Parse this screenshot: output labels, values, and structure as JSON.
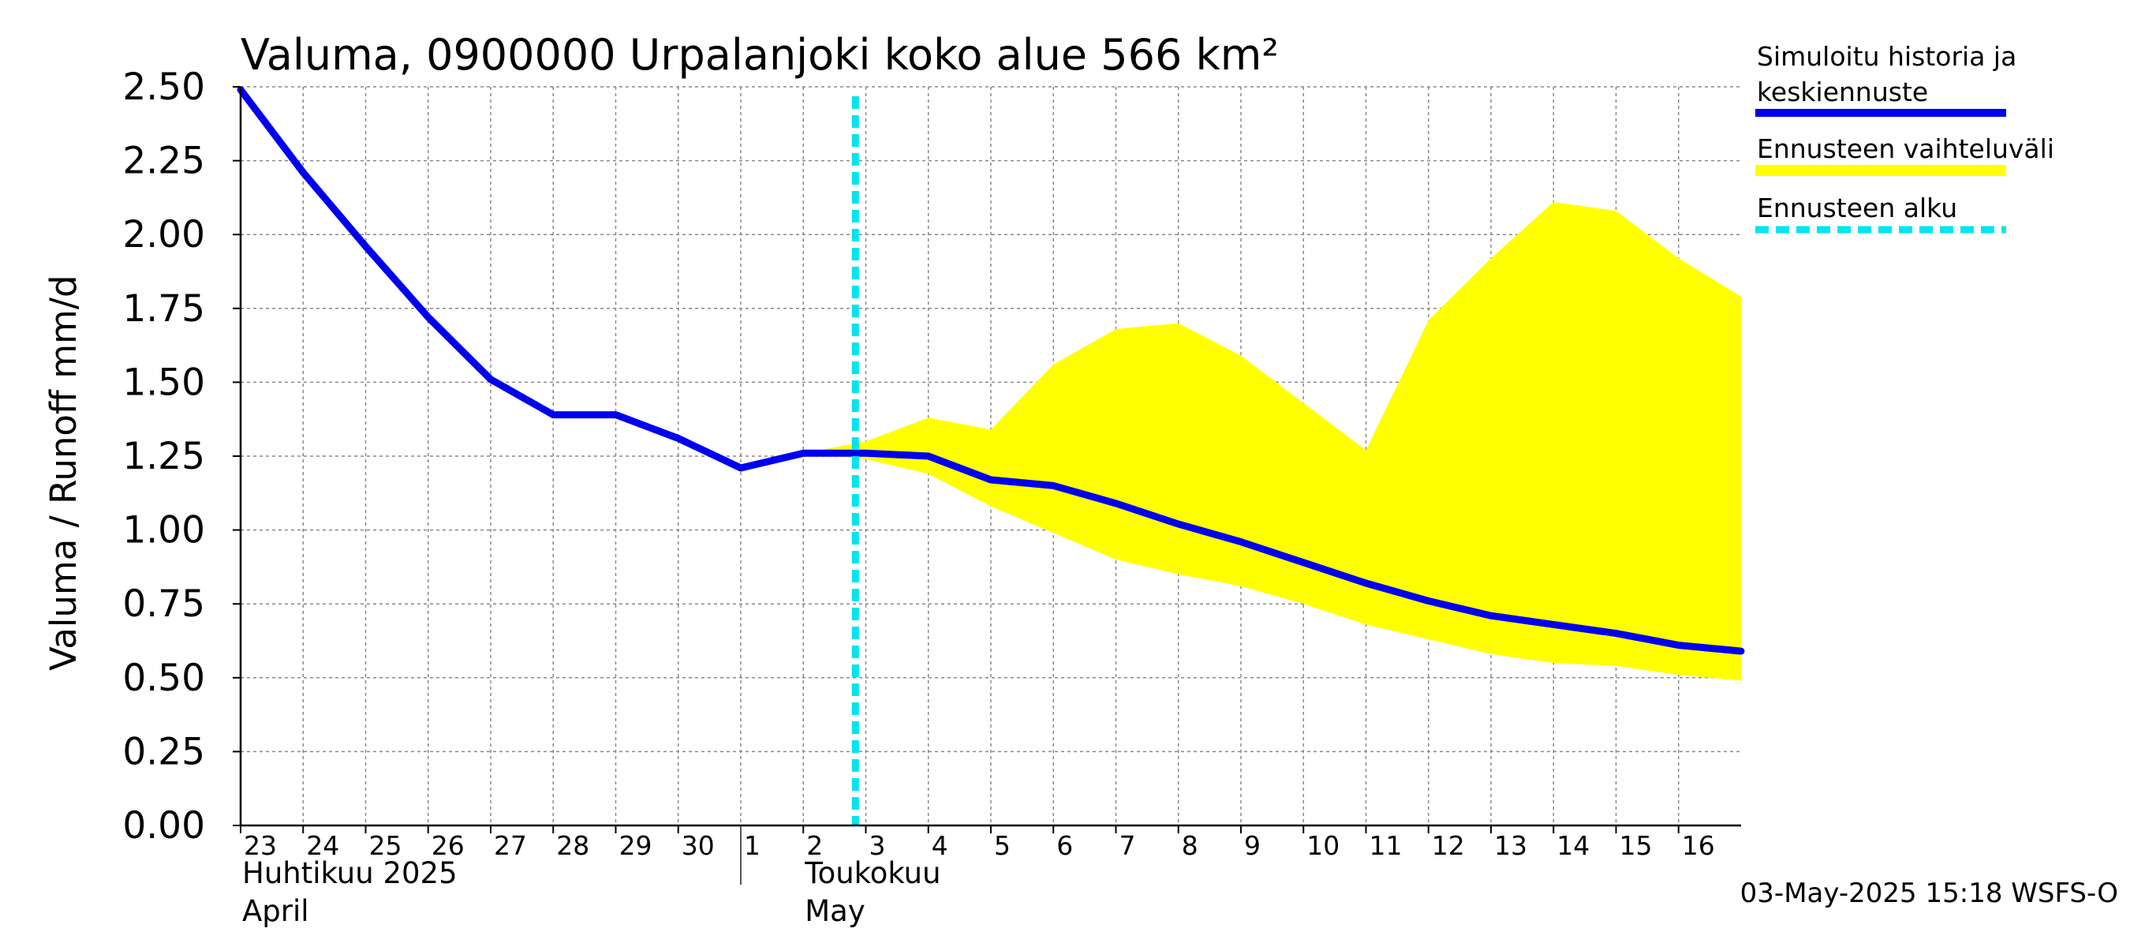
{
  "chart_data": {
    "type": "line",
    "title": "Valuma, 0900000 Urpalanjoki koko alue 566 km²",
    "ylabel": "Valuma / Runoff    mm/d",
    "ylim": [
      0,
      2.5
    ],
    "yticks": [
      "0.00",
      "0.25",
      "0.50",
      "0.75",
      "1.00",
      "1.25",
      "1.50",
      "1.75",
      "2.00",
      "2.25",
      "2.50"
    ],
    "xlim": [
      "2025-04-23",
      "2025-05-17"
    ],
    "x_ticks": [
      {
        "date": "2025-04-23",
        "label": "23"
      },
      {
        "date": "2025-04-24",
        "label": "24"
      },
      {
        "date": "2025-04-25",
        "label": "25"
      },
      {
        "date": "2025-04-26",
        "label": "26"
      },
      {
        "date": "2025-04-27",
        "label": "27"
      },
      {
        "date": "2025-04-28",
        "label": "28"
      },
      {
        "date": "2025-04-29",
        "label": "29"
      },
      {
        "date": "2025-04-30",
        "label": "30"
      },
      {
        "date": "2025-05-01",
        "label": "1"
      },
      {
        "date": "2025-05-02",
        "label": "2"
      },
      {
        "date": "2025-05-03",
        "label": "3"
      },
      {
        "date": "2025-05-04",
        "label": "4"
      },
      {
        "date": "2025-05-05",
        "label": "5"
      },
      {
        "date": "2025-05-06",
        "label": "6"
      },
      {
        "date": "2025-05-07",
        "label": "7"
      },
      {
        "date": "2025-05-08",
        "label": "8"
      },
      {
        "date": "2025-05-09",
        "label": "9"
      },
      {
        "date": "2025-05-10",
        "label": "10"
      },
      {
        "date": "2025-05-11",
        "label": "11"
      },
      {
        "date": "2025-05-12",
        "label": "12"
      },
      {
        "date": "2025-05-13",
        "label": "13"
      },
      {
        "date": "2025-05-14",
        "label": "14"
      },
      {
        "date": "2025-05-15",
        "label": "15"
      },
      {
        "date": "2025-05-16",
        "label": "16"
      }
    ],
    "months": [
      {
        "date": "2025-04-23",
        "line1": "Huhtikuu  2025",
        "line2": "April"
      },
      {
        "date": "2025-05-02",
        "line1": "Toukokuu",
        "line2": "May"
      }
    ],
    "month_divider": "2025-05-01",
    "series": [
      {
        "name": "Simuloitu historia ja keskiennuste",
        "color": "#0000ee",
        "x": [
          "2025-04-23",
          "2025-04-24",
          "2025-04-25",
          "2025-04-26",
          "2025-04-27",
          "2025-04-28",
          "2025-04-29",
          "2025-04-30",
          "2025-05-01",
          "2025-05-02",
          "2025-05-03",
          "2025-05-04",
          "2025-05-05",
          "2025-05-06",
          "2025-05-07",
          "2025-05-08",
          "2025-05-09",
          "2025-05-10",
          "2025-05-11",
          "2025-05-12",
          "2025-05-13",
          "2025-05-14",
          "2025-05-15",
          "2025-05-16",
          "2025-05-17"
        ],
        "values": [
          2.49,
          2.21,
          1.96,
          1.72,
          1.51,
          1.39,
          1.39,
          1.31,
          1.21,
          1.26,
          1.26,
          1.25,
          1.17,
          1.15,
          1.09,
          1.02,
          0.96,
          0.89,
          0.82,
          0.76,
          0.71,
          0.68,
          0.65,
          0.61,
          0.59
        ]
      }
    ],
    "band": {
      "name": "Ennusteen vaihteluväli",
      "color": "#ffff00",
      "x": [
        "2025-05-02",
        "2025-05-03",
        "2025-05-04",
        "2025-05-05",
        "2025-05-06",
        "2025-05-07",
        "2025-05-08",
        "2025-05-09",
        "2025-05-10",
        "2025-05-11",
        "2025-05-12",
        "2025-05-13",
        "2025-05-14",
        "2025-05-15",
        "2025-05-16",
        "2025-05-17"
      ],
      "upper": [
        1.26,
        1.3,
        1.38,
        1.34,
        1.56,
        1.68,
        1.7,
        1.59,
        1.43,
        1.27,
        1.71,
        1.92,
        2.11,
        2.08,
        1.92,
        1.79
      ],
      "lower": [
        1.26,
        1.24,
        1.19,
        1.08,
        0.99,
        0.9,
        0.85,
        0.81,
        0.75,
        0.68,
        0.63,
        0.58,
        0.55,
        0.54,
        0.51,
        0.49
      ]
    },
    "forecast_start": {
      "name": "Ennusteen alku",
      "color": "#00e5ee",
      "date": "2025-05-02T20:00"
    },
    "grid": true
  },
  "legend": {
    "items": [
      {
        "line1": "Simuloitu historia ja",
        "line2": "keskiennuste",
        "color": "#0000ee"
      },
      {
        "line1": "Ennusteen vaihteluväli",
        "line2": "",
        "color": "#ffff00"
      },
      {
        "line1": "Ennusteen alku",
        "line2": "",
        "color": "#00e5ee"
      }
    ]
  },
  "footer": "03-May-2025 15:18 WSFS-O"
}
